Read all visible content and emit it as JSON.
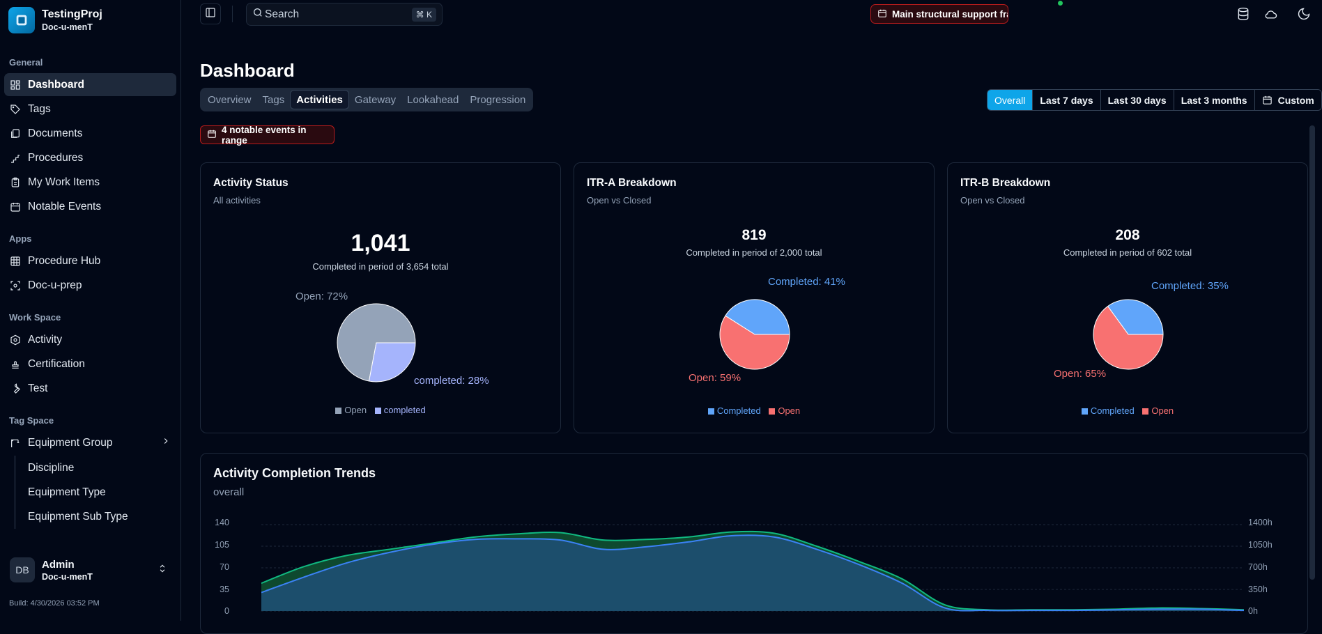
{
  "brand": {
    "title": "TestingProj",
    "subtitle": "Doc-u-menT"
  },
  "sidebar": {
    "general_label": "General",
    "general": [
      {
        "label": "Dashboard",
        "icon": "dashboard-icon",
        "active": true
      },
      {
        "label": "Tags",
        "icon": "tag-icon"
      },
      {
        "label": "Documents",
        "icon": "documents-icon"
      },
      {
        "label": "Procedures",
        "icon": "stairs-icon"
      },
      {
        "label": "My Work Items",
        "icon": "clipboard-icon"
      },
      {
        "label": "Notable Events",
        "icon": "calendar-icon"
      }
    ],
    "apps_label": "Apps",
    "apps": [
      {
        "label": "Procedure Hub",
        "icon": "grid-icon"
      },
      {
        "label": "Doc-u-prep",
        "icon": "scan-icon"
      }
    ],
    "workspace_label": "Work Space",
    "workspace": [
      {
        "label": "Activity",
        "icon": "hexagon-icon"
      },
      {
        "label": "Certification",
        "icon": "stamp-icon"
      },
      {
        "label": "Test",
        "icon": "wrench-icon"
      }
    ],
    "tagspace_label": "Tag Space",
    "equipment_group": "Equipment Group",
    "tagspace_sub": [
      "Discipline",
      "Equipment Type",
      "Equipment Sub Type"
    ]
  },
  "user": {
    "initials": "DB",
    "name": "Admin",
    "org": "Doc-u-menT"
  },
  "build": "Build: 4/30/2026 03:52 PM",
  "search": {
    "placeholder": "Search",
    "shortcut": "⌘ K"
  },
  "alert": {
    "text": "Main structural support fractur..."
  },
  "page": {
    "title": "Dashboard"
  },
  "tabs": [
    "Overview",
    "Tags",
    "Activities",
    "Gateway",
    "Lookahead",
    "Progression"
  ],
  "active_tab": "Activities",
  "ranges": [
    "Overall",
    "Last 7 days",
    "Last 30 days",
    "Last 3 months",
    "Custom"
  ],
  "active_range": "Overall",
  "events": {
    "text": "4 notable events in range"
  },
  "colors": {
    "open_gray": "#94a3b8",
    "completed_lavender": "#a5b4fc",
    "completed_blue": "#60a5fa",
    "open_red": "#f87171",
    "accent": "#0ea5e9",
    "green_line": "#10b981"
  },
  "cards": [
    {
      "title": "Activity Status",
      "subtitle": "All activities",
      "value": "1,041",
      "caption": "Completed in period of 3,654 total",
      "label_a": "Open: 72%",
      "label_b": "completed: 28%",
      "legend": [
        "Open",
        "completed"
      ]
    },
    {
      "title": "ITR-A Breakdown",
      "subtitle": "Open vs Closed",
      "value": "819",
      "caption": "Completed in period of 2,000 total",
      "label_a": "Completed: 41%",
      "label_b": "Open: 59%",
      "legend": [
        "Completed",
        "Open"
      ]
    },
    {
      "title": "ITR-B Breakdown",
      "subtitle": "Open vs Closed",
      "value": "208",
      "caption": "Completed in period of 602 total",
      "label_a": "Completed: 35%",
      "label_b": "Open: 65%",
      "legend": [
        "Completed",
        "Open"
      ]
    }
  ],
  "chart_data": [
    {
      "type": "pie",
      "title": "Activity Status",
      "slices": [
        {
          "label": "Open",
          "value": 72,
          "color": "#94a3b8"
        },
        {
          "label": "completed",
          "value": 28,
          "color": "#a5b4fc"
        }
      ]
    },
    {
      "type": "pie",
      "title": "ITR-A Breakdown",
      "slices": [
        {
          "label": "Completed",
          "value": 41,
          "color": "#60a5fa"
        },
        {
          "label": "Open",
          "value": 59,
          "color": "#f87171"
        }
      ]
    },
    {
      "type": "pie",
      "title": "ITR-B Breakdown",
      "slices": [
        {
          "label": "Completed",
          "value": 35,
          "color": "#60a5fa"
        },
        {
          "label": "Open",
          "value": 65,
          "color": "#f87171"
        }
      ]
    },
    {
      "type": "area",
      "title": "Activity Completion Trends",
      "subtitle": "overall",
      "y_left_ticks": [
        "140",
        "105",
        "70",
        "35",
        "0"
      ],
      "y_right_ticks": [
        "1400h",
        "1050h",
        "700h",
        "350h",
        "0h"
      ],
      "ylim": [
        0,
        140
      ],
      "series": [
        {
          "color": "#10b981",
          "values": [
            45,
            72,
            90,
            100,
            110,
            120,
            125,
            127,
            115,
            116,
            120,
            128,
            126,
            105,
            80,
            52,
            10,
            2,
            2,
            2,
            3,
            5,
            4,
            2
          ]
        },
        {
          "color": "#3b82f6",
          "values": [
            30,
            55,
            78,
            95,
            108,
            116,
            117,
            115,
            100,
            104,
            112,
            122,
            120,
            100,
            75,
            45,
            5,
            1,
            1,
            1,
            2,
            3,
            3,
            1
          ]
        }
      ]
    }
  ]
}
